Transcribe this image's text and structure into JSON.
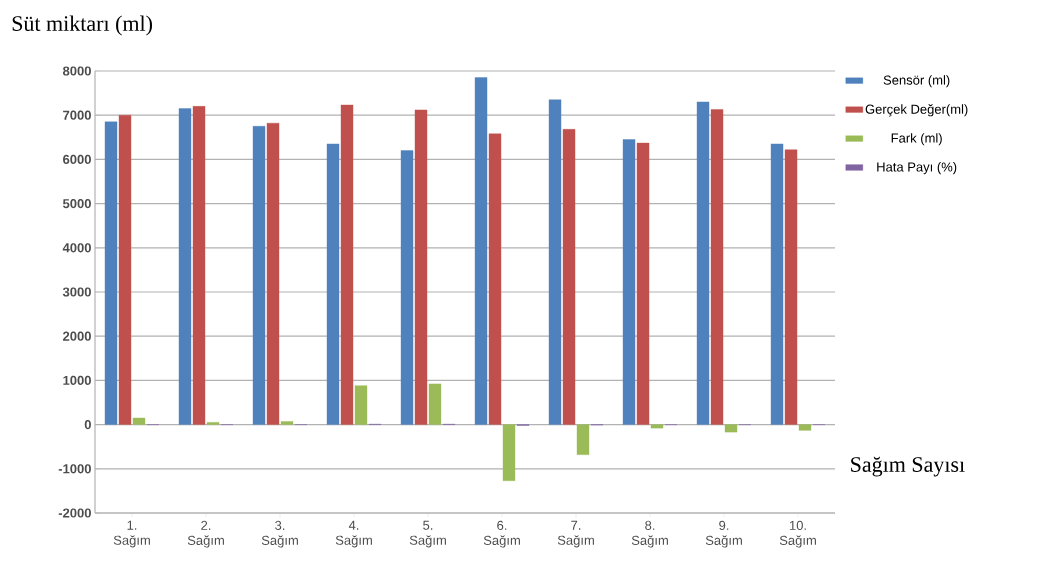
{
  "chart_data": {
    "type": "bar",
    "ylabel": "Süt miktarı (ml)",
    "xlabel": "Sağım Sayısı",
    "categories": [
      "1. Sağım",
      "2. Sağım",
      "3. Sağım",
      "4. Sağım",
      "5. Sağım",
      "6. Sağım",
      "7. Sağım",
      "8. Sağım",
      "9. Sağım",
      "10. Sağım"
    ],
    "series": [
      {
        "name": "Sensör (ml)",
        "color": "#4f81bd",
        "values": [
          6850,
          7150,
          6750,
          6350,
          6200,
          7850,
          7350,
          6450,
          7300,
          6350
        ]
      },
      {
        "name": "Gerçek Değer(ml)",
        "color": "#c0504d",
        "values": [
          7000,
          7200,
          6820,
          7230,
          7120,
          6580,
          6680,
          6370,
          7130,
          6220
        ]
      },
      {
        "name": "Fark (ml)",
        "color": "#9bbb59",
        "values": [
          150,
          50,
          70,
          880,
          920,
          -1270,
          -680,
          -80,
          -170,
          -130
        ]
      },
      {
        "name": "Hata Payı (%)",
        "color": "#8064a2",
        "values": [
          0,
          0,
          0,
          10,
          10,
          -20,
          -10,
          0,
          0,
          0
        ]
      }
    ],
    "ylim": [
      -2000,
      8000
    ],
    "yticks": [
      -2000,
      -1000,
      0,
      1000,
      2000,
      3000,
      4000,
      5000,
      6000,
      7000,
      8000
    ],
    "grid": "y",
    "legend": "top right"
  }
}
